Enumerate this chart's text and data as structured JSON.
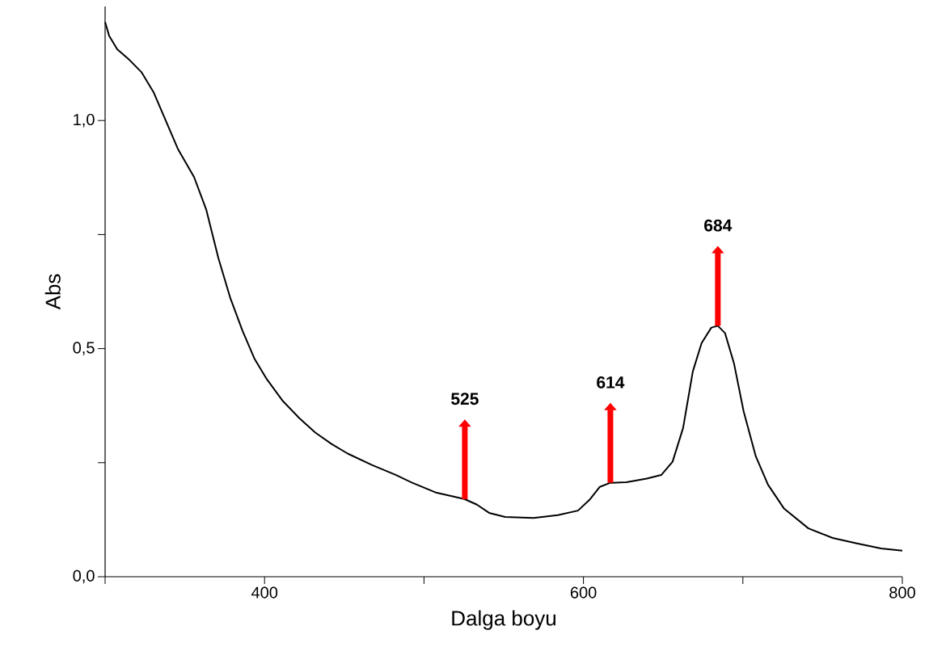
{
  "chart_data": {
    "type": "line",
    "xlabel": "Dalga boyu",
    "ylabel": "Abs",
    "x": [
      300,
      302.5,
      307.6,
      315.2,
      322.8,
      330.4,
      338,
      345.6,
      355.8,
      363.4,
      371,
      378.6,
      386.2,
      393.8,
      401.4,
      411.5,
      421.7,
      431.8,
      442,
      452.1,
      467.3,
      482.5,
      492.6,
      507.9,
      518,
      525.6,
      533.2,
      540.8,
      550.9,
      568.7,
      583.9,
      596.6,
      604.2,
      610.3,
      616.9,
      627,
      639.7,
      648.8,
      655.9,
      662.5,
      668.6,
      674.1,
      680.2,
      684.3,
      688.8,
      694.4,
      700.5,
      708.1,
      715.7,
      725.9,
      741.1,
      756.3,
      771.5,
      786.7,
      800
    ],
    "series": [
      {
        "color": "#000000",
        "values": [
          1.216,
          1.186,
          1.156,
          1.133,
          1.106,
          1.062,
          1.0,
          0.938,
          0.876,
          0.805,
          0.699,
          0.61,
          0.539,
          0.477,
          0.433,
          0.385,
          0.348,
          0.316,
          0.291,
          0.27,
          0.245,
          0.223,
          0.206,
          0.184,
          0.176,
          0.17,
          0.158,
          0.14,
          0.131,
          0.129,
          0.135,
          0.145,
          0.17,
          0.197,
          0.206,
          0.207,
          0.215,
          0.223,
          0.252,
          0.326,
          0.45,
          0.512,
          0.546,
          0.55,
          0.534,
          0.468,
          0.362,
          0.264,
          0.202,
          0.149,
          0.106,
          0.085,
          0.073,
          0.062,
          0.057
        ]
      }
    ],
    "xlim": [
      300,
      800
    ],
    "ylim": [
      0,
      1.25
    ],
    "xticks": [
      {
        "value": 300,
        "label": null
      },
      400,
      {
        "value": 500,
        "label": null
      },
      600,
      {
        "value": 700,
        "label": null
      },
      800
    ],
    "yticks": [
      {
        "value": 0,
        "label": "0,0"
      },
      {
        "value": 0.25,
        "label": null
      },
      {
        "value": 0.5,
        "label": "0,5"
      },
      {
        "value": 0.75,
        "label": null
      },
      {
        "value": 1.0,
        "label": "1,0"
      }
    ],
    "annotations": [
      {
        "text": "525",
        "x": 525.6,
        "y": 0.17
      },
      {
        "text": "614",
        "x": 616.9,
        "y": 0.206
      },
      {
        "text": "684",
        "x": 684.3,
        "y": 0.55
      }
    ],
    "grid": false,
    "marker": "none",
    "line_style": "solid"
  }
}
